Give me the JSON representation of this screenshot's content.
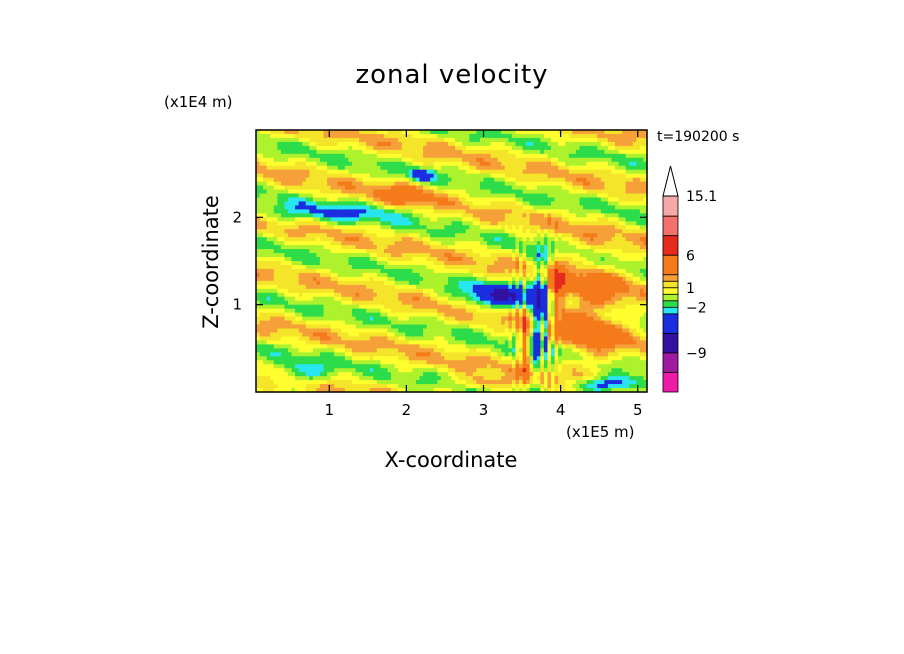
{
  "chart_data": {
    "type": "heatmap",
    "title": "zonal velocity",
    "xlabel": "X-coordinate",
    "ylabel": "Z-coordinate",
    "x_unit": "(x1E5 m)",
    "y_unit": "(x1E4 m)",
    "time_label": "t=190200 s",
    "xlim": [
      0.05,
      5.12
    ],
    "ylim": [
      0,
      3.0
    ],
    "x_ticks": [
      1,
      2,
      3,
      4,
      5
    ],
    "y_ticks": [
      1,
      2
    ],
    "colorbar": {
      "tick_labels": [
        "15.1",
        "6",
        "1",
        "−2",
        "−9"
      ],
      "tick_levels": [
        15.1,
        6,
        1,
        -2,
        -9
      ],
      "bins": [
        {
          "low": 12,
          "high": 15.1,
          "color": "#f5aaa8"
        },
        {
          "low": 9,
          "high": 12,
          "color": "#f3706c"
        },
        {
          "low": 6,
          "high": 9,
          "color": "#e62a1c"
        },
        {
          "low": 3,
          "high": 6,
          "color": "#f57a1a"
        },
        {
          "low": 2,
          "high": 3,
          "color": "#f6a03a"
        },
        {
          "low": 1,
          "high": 2,
          "color": "#f4e42a"
        },
        {
          "low": 0,
          "high": 1,
          "color": "#ffff30"
        },
        {
          "low": -1,
          "high": 0,
          "color": "#adf22c"
        },
        {
          "low": -2,
          "high": -1,
          "color": "#2ddc4a"
        },
        {
          "low": -3,
          "high": -2,
          "color": "#28e6ef"
        },
        {
          "low": -6,
          "high": -3,
          "color": "#1a2ee0"
        },
        {
          "low": -9,
          "high": -6,
          "color": "#3311a0"
        },
        {
          "low": -12,
          "high": -9,
          "color": "#a01aa0"
        },
        {
          "low": -15,
          "high": -12,
          "color": "#f01aa8"
        }
      ],
      "overflow_color": "#ffffff"
    }
  }
}
